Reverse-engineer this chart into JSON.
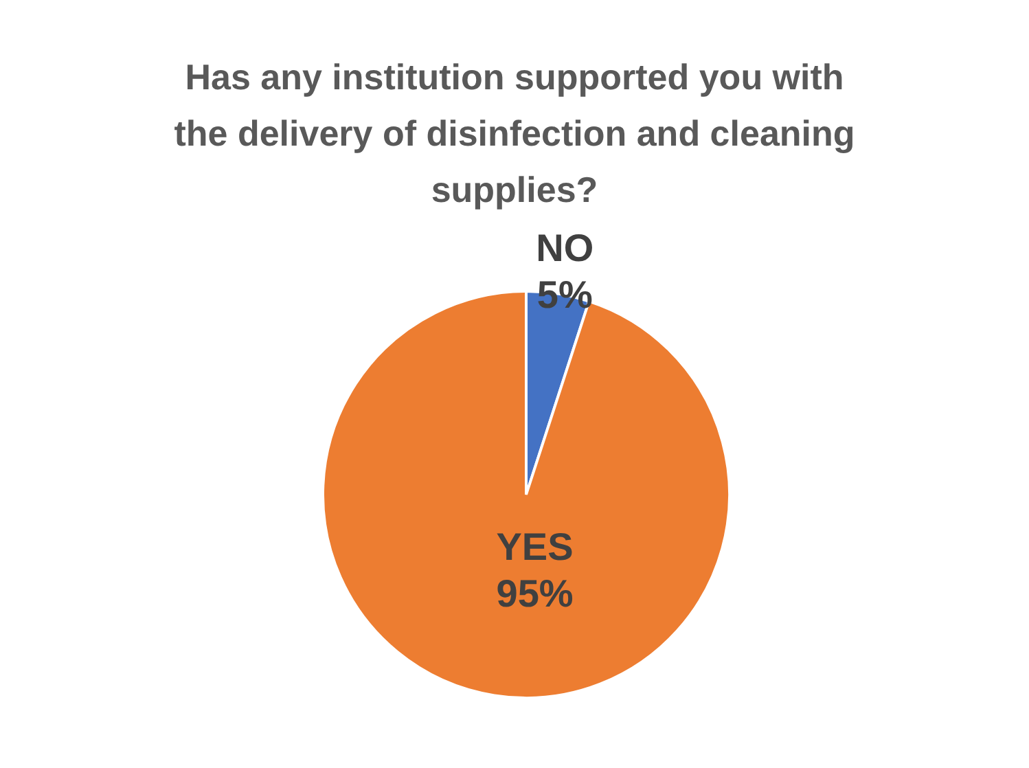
{
  "chart_data": {
    "type": "pie",
    "title": "Has any institution supported you with the delivery of disinfection and cleaning supplies?",
    "categories": [
      "NO",
      "YES"
    ],
    "values": [
      5,
      95
    ],
    "colors": [
      "#4472c4",
      "#ed7d31"
    ],
    "value_labels": [
      "5%",
      "95%"
    ],
    "legend": false
  }
}
